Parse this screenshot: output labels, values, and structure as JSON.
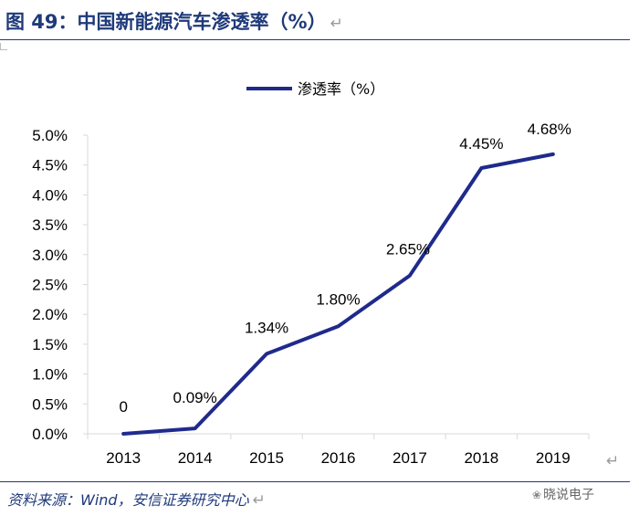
{
  "figure": {
    "title": "图 49：中国新能源汽车渗透率（%）",
    "source": "资料来源：Wind，安信证券研究中心",
    "watermark": "晓说电子",
    "return_mark": "↵"
  },
  "colors": {
    "line": "#1f2a8c",
    "title": "#1f3a7a",
    "axis": "#d9d9d9"
  },
  "chart_data": {
    "type": "line",
    "title": "",
    "xlabel": "",
    "ylabel": "",
    "categories": [
      "2013",
      "2014",
      "2015",
      "2016",
      "2017",
      "2018",
      "2019"
    ],
    "series": [
      {
        "name": "渗透率（%）",
        "values": [
          0,
          0.09,
          1.34,
          1.8,
          2.65,
          4.45,
          4.68
        ],
        "data_labels": [
          "0",
          "0.09%",
          "1.34%",
          "1.80%",
          "2.65%",
          "4.45%",
          "4.68%"
        ]
      }
    ],
    "ylim": [
      0,
      5.0
    ],
    "yticks": [
      0,
      0.5,
      1.0,
      1.5,
      2.0,
      2.5,
      3.0,
      3.5,
      4.0,
      4.5,
      5.0
    ],
    "ytick_labels": [
      "0.0%",
      "0.5%",
      "1.0%",
      "1.5%",
      "2.0%",
      "2.5%",
      "3.0%",
      "3.5%",
      "4.0%",
      "4.5%",
      "5.0%"
    ],
    "grid": false,
    "legend_position": "top-center"
  }
}
